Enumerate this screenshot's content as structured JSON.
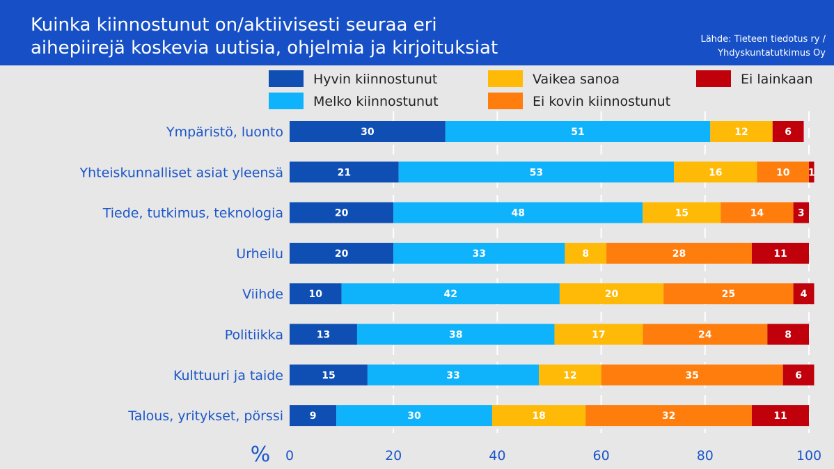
{
  "header": {
    "title_line1": "Kuinka kiinnostunut on/aktiivisesti seuraa eri",
    "title_line2": "aihepiirejä koskevia uutisia, ohjelmia ja kirjoituksiat",
    "source_line1": "Lähde: Tieteen tiedotus ry /",
    "source_line2": "Yhdyskuntatutkimus Oy"
  },
  "chart_data": {
    "type": "bar",
    "orientation": "horizontal",
    "stacked": true,
    "title": "Kuinka kiinnostunut on/aktiivisesti seuraa eri aihepiirejä koskevia uutisia, ohjelmia ja kirjoituksiat",
    "xlabel": "%",
    "ylabel": "",
    "xlim": [
      0,
      100
    ],
    "xticks": [
      0,
      20,
      40,
      60,
      80,
      100
    ],
    "grid": "vertical dashed",
    "legend_position": "top",
    "categories": [
      "Ympäristö, luonto",
      "Yhteiskunnalliset asiat yleensä",
      "Tiede, tutkimus, teknologia",
      "Urheilu",
      "Viihde",
      "Politiikka",
      "Kulttuuri ja taide",
      "Talous, yritykset, pörssi"
    ],
    "series": [
      {
        "name": "Hyvin kiinnostunut",
        "color": "#0f4fb4",
        "values": [
          30,
          21,
          20,
          20,
          10,
          13,
          15,
          9
        ]
      },
      {
        "name": "Melko kiinnostunut",
        "color": "#0fb3fb",
        "values": [
          51,
          53,
          48,
          33,
          42,
          38,
          33,
          30
        ]
      },
      {
        "name": "Vaikea sanoa",
        "color": "#ffba08",
        "values": [
          12,
          16,
          15,
          8,
          20,
          17,
          12,
          18
        ]
      },
      {
        "name": "Ei kovin kiinnostunut",
        "color": "#ff7d0c",
        "values": [
          0,
          10,
          14,
          28,
          25,
          24,
          35,
          32
        ]
      },
      {
        "name": "Ei lainkaan",
        "color": "#c0000b",
        "values": [
          6,
          1,
          3,
          11,
          4,
          8,
          6,
          11
        ]
      }
    ],
    "source": "Lähde: Tieteen tiedotus ry / Yhdyskuntatutkimus Oy"
  }
}
